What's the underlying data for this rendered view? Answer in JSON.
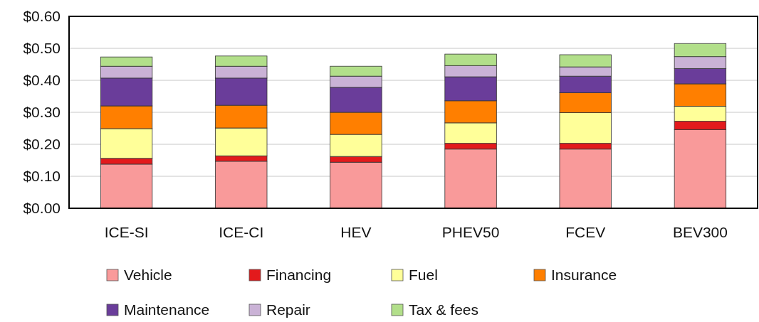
{
  "chart_data": {
    "type": "bar",
    "stacked": true,
    "categories": [
      "ICE-SI",
      "ICE-CI",
      "HEV",
      "PHEV50",
      "FCEV",
      "BEV300"
    ],
    "series": [
      {
        "name": "Vehicle",
        "color": "#f99a9a",
        "values": [
          0.138,
          0.147,
          0.144,
          0.185,
          0.185,
          0.246
        ]
      },
      {
        "name": "Financing",
        "color": "#e31a1c",
        "values": [
          0.018,
          0.017,
          0.018,
          0.018,
          0.018,
          0.026
        ]
      },
      {
        "name": "Fuel",
        "color": "#ffff99",
        "values": [
          0.093,
          0.087,
          0.069,
          0.064,
          0.096,
          0.047
        ]
      },
      {
        "name": "Insurance",
        "color": "#ff7f00",
        "values": [
          0.071,
          0.071,
          0.069,
          0.069,
          0.062,
          0.07
        ]
      },
      {
        "name": "Maintenance",
        "color": "#6a3d9a",
        "values": [
          0.087,
          0.085,
          0.078,
          0.075,
          0.052,
          0.048
        ]
      },
      {
        "name": "Repair",
        "color": "#cab2d6",
        "values": [
          0.037,
          0.037,
          0.035,
          0.035,
          0.029,
          0.037
        ]
      },
      {
        "name": "Tax & fees",
        "color": "#b2df8a",
        "values": [
          0.029,
          0.032,
          0.031,
          0.036,
          0.038,
          0.041
        ]
      }
    ],
    "ylim": [
      0,
      0.6
    ],
    "yticks": [
      {
        "value": 0,
        "label": "$0.00"
      },
      {
        "value": 0.1,
        "label": "$0.10"
      },
      {
        "value": 0.2,
        "label": "$0.20"
      },
      {
        "value": 0.3,
        "label": "$0.30"
      },
      {
        "value": 0.4,
        "label": "$0.40"
      },
      {
        "value": 0.5,
        "label": "$0.50"
      },
      {
        "value": 0.6,
        "label": "$0.60"
      }
    ],
    "grid": "y",
    "legend": "bottom"
  }
}
